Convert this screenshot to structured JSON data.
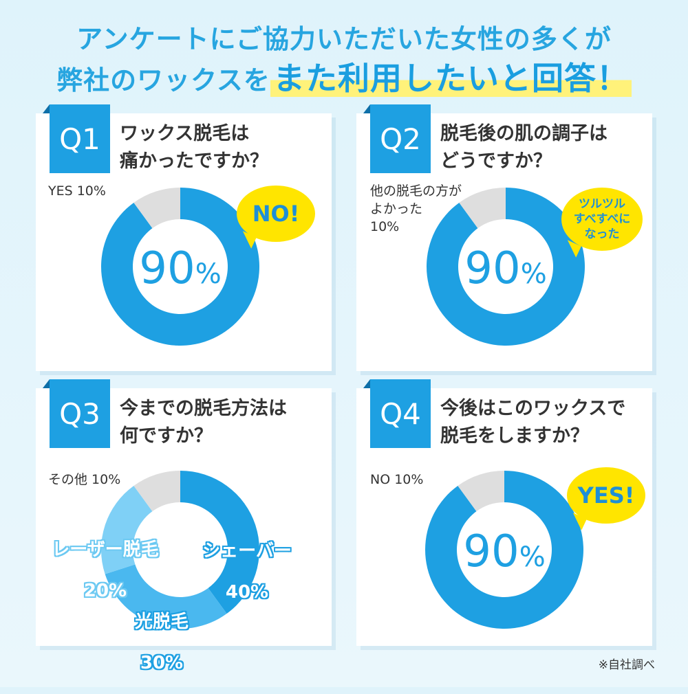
{
  "header": {
    "line1": "アンケートにご協力いただいた女性の多くが",
    "line2_prefix": "弊社のワックスを",
    "line2_highlight": "また利用したいと回答！"
  },
  "footnote": "※自社調べ",
  "colors": {
    "primary": "#1ea0e2",
    "mid": "#4ab8ef",
    "light": "#7fd0f6",
    "gray": "#dedede",
    "bubble": "#ffe500"
  },
  "questions": [
    {
      "tag": "Q1",
      "text_line1": "ワックス脱毛は",
      "text_line2": "痛かったですか？",
      "minor_label": "YES 10%",
      "center_value": "90",
      "center_unit": "%",
      "bubble": "NO!"
    },
    {
      "tag": "Q2",
      "text_line1": "脱毛後の肌の調子は",
      "text_line2": "どうですか？",
      "minor_label": "他の脱毛の方が\nよかった\n10%",
      "center_value": "90",
      "center_unit": "%",
      "bubble": "ツルツル\nすべすべに\nなった"
    },
    {
      "tag": "Q3",
      "text_line1": "今までの脱毛方法は",
      "text_line2": "何ですか？",
      "minor_label": "その他 10%",
      "slice_labels": [
        {
          "name": "シェーバー",
          "value": "40%"
        },
        {
          "name": "光脱毛",
          "value": "30%"
        },
        {
          "name": "レーザー脱毛",
          "value": "20%"
        }
      ]
    },
    {
      "tag": "Q4",
      "text_line1": "今後はこのワックスで",
      "text_line2": "脱毛をしますか？",
      "minor_label": "NO 10%",
      "center_value": "90",
      "center_unit": "%",
      "bubble": "YES!"
    }
  ],
  "chart_data": [
    {
      "type": "pie",
      "categories": [
        "NO",
        "YES"
      ],
      "values": [
        90,
        10
      ]
    },
    {
      "type": "pie",
      "categories": [
        "ツルツルすべすべになった",
        "他の脱毛の方がよかった"
      ],
      "values": [
        90,
        10
      ]
    },
    {
      "type": "pie",
      "categories": [
        "シェーバー",
        "光脱毛",
        "レーザー脱毛",
        "その他"
      ],
      "values": [
        40,
        30,
        20,
        10
      ]
    },
    {
      "type": "pie",
      "categories": [
        "YES",
        "NO"
      ],
      "values": [
        90,
        10
      ]
    }
  ]
}
